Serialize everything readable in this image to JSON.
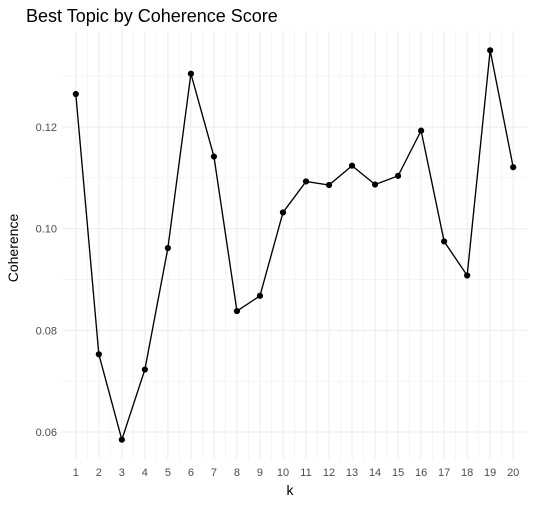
{
  "chart_data": {
    "type": "line",
    "title": "Best Topic by Coherence Score",
    "xlabel": "k",
    "ylabel": "Coherence",
    "x": [
      1,
      2,
      3,
      4,
      5,
      6,
      7,
      8,
      9,
      10,
      11,
      12,
      13,
      14,
      15,
      16,
      17,
      18,
      19,
      20
    ],
    "series": [
      {
        "values": [
          0.1265,
          0.0753,
          0.0585,
          0.0723,
          0.0962,
          0.1305,
          0.1142,
          0.0838,
          0.0868,
          0.1032,
          0.1093,
          0.1086,
          0.1124,
          0.1087,
          0.1104,
          0.1193,
          0.0975,
          0.0908,
          0.1351,
          0.1121
        ]
      }
    ],
    "x_ticks": [
      "1",
      "2",
      "3",
      "4",
      "5",
      "6",
      "7",
      "8",
      "9",
      "10",
      "11",
      "12",
      "13",
      "14",
      "15",
      "16",
      "17",
      "18",
      "19",
      "20"
    ],
    "y_ticks": [
      {
        "value": 0.06,
        "label": "0.06"
      },
      {
        "value": 0.08,
        "label": "0.08"
      },
      {
        "value": 0.1,
        "label": "0.10"
      },
      {
        "value": 0.12,
        "label": "0.12"
      }
    ],
    "xlim": [
      0.4,
      20.6
    ],
    "ylim": [
      0.0547,
      0.1389
    ],
    "grid": true,
    "theme": "minimal",
    "colors": {
      "line": "#000000",
      "points": "#000000",
      "grid_major": "#ebebeb",
      "grid_minor": "#f2f2f2",
      "tick_text": "#4d4d4d",
      "text": "#000000"
    }
  }
}
